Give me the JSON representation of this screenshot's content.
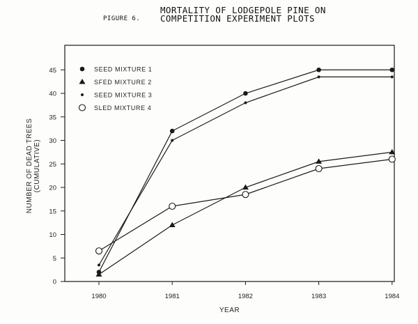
{
  "figure": {
    "label": "PIGURE 6.",
    "title_lines": [
      "MORTALITY OF LODGEPOLE PINE ON",
      "COMPETITION EXPERIMENT PLOTS"
    ]
  },
  "chart_data": {
    "type": "line",
    "title": "MORTALITY OF LODGEPOLE PINE ON COMPETITION EXPERIMENT PLOTS",
    "xlabel": "YEAR",
    "ylabel": "NUMBER OF DEAD TREES (CUMULATIVE)",
    "ylabel_lines": [
      "NUMBER OF DEAD TREES",
      "(CUMULATIVE)"
    ],
    "categories": [
      "1980",
      "1981",
      "1982",
      "1983",
      "1984"
    ],
    "yticks": [
      0,
      5,
      10,
      15,
      20,
      25,
      30,
      35,
      40,
      45
    ],
    "ylim": [
      0,
      47
    ],
    "grid": false,
    "legend_position": "upper-left-inside",
    "series": [
      {
        "name": "SEED MIXTURE 1",
        "legend_label": "SEED  MIXTURE 1",
        "marker": "filled-circle",
        "values": [
          2,
          32,
          40,
          45,
          45
        ]
      },
      {
        "name": "SEED MIXTURE 2",
        "legend_label": "SFED  MIXTURE 2",
        "marker": "filled-triangle",
        "values": [
          1.5,
          12,
          20,
          25.5,
          27.5
        ]
      },
      {
        "name": "SEED MIXTURE 3",
        "legend_label": "SEED  MIXTURE 3",
        "marker": "small-dot",
        "values": [
          3.5,
          30,
          38,
          43.5,
          43.5
        ]
      },
      {
        "name": "SEED MIXTURE 4",
        "legend_label": "SLED  MIXTURE 4",
        "marker": "open-circle",
        "values": [
          6.5,
          16,
          18.5,
          24,
          26
        ]
      }
    ]
  }
}
